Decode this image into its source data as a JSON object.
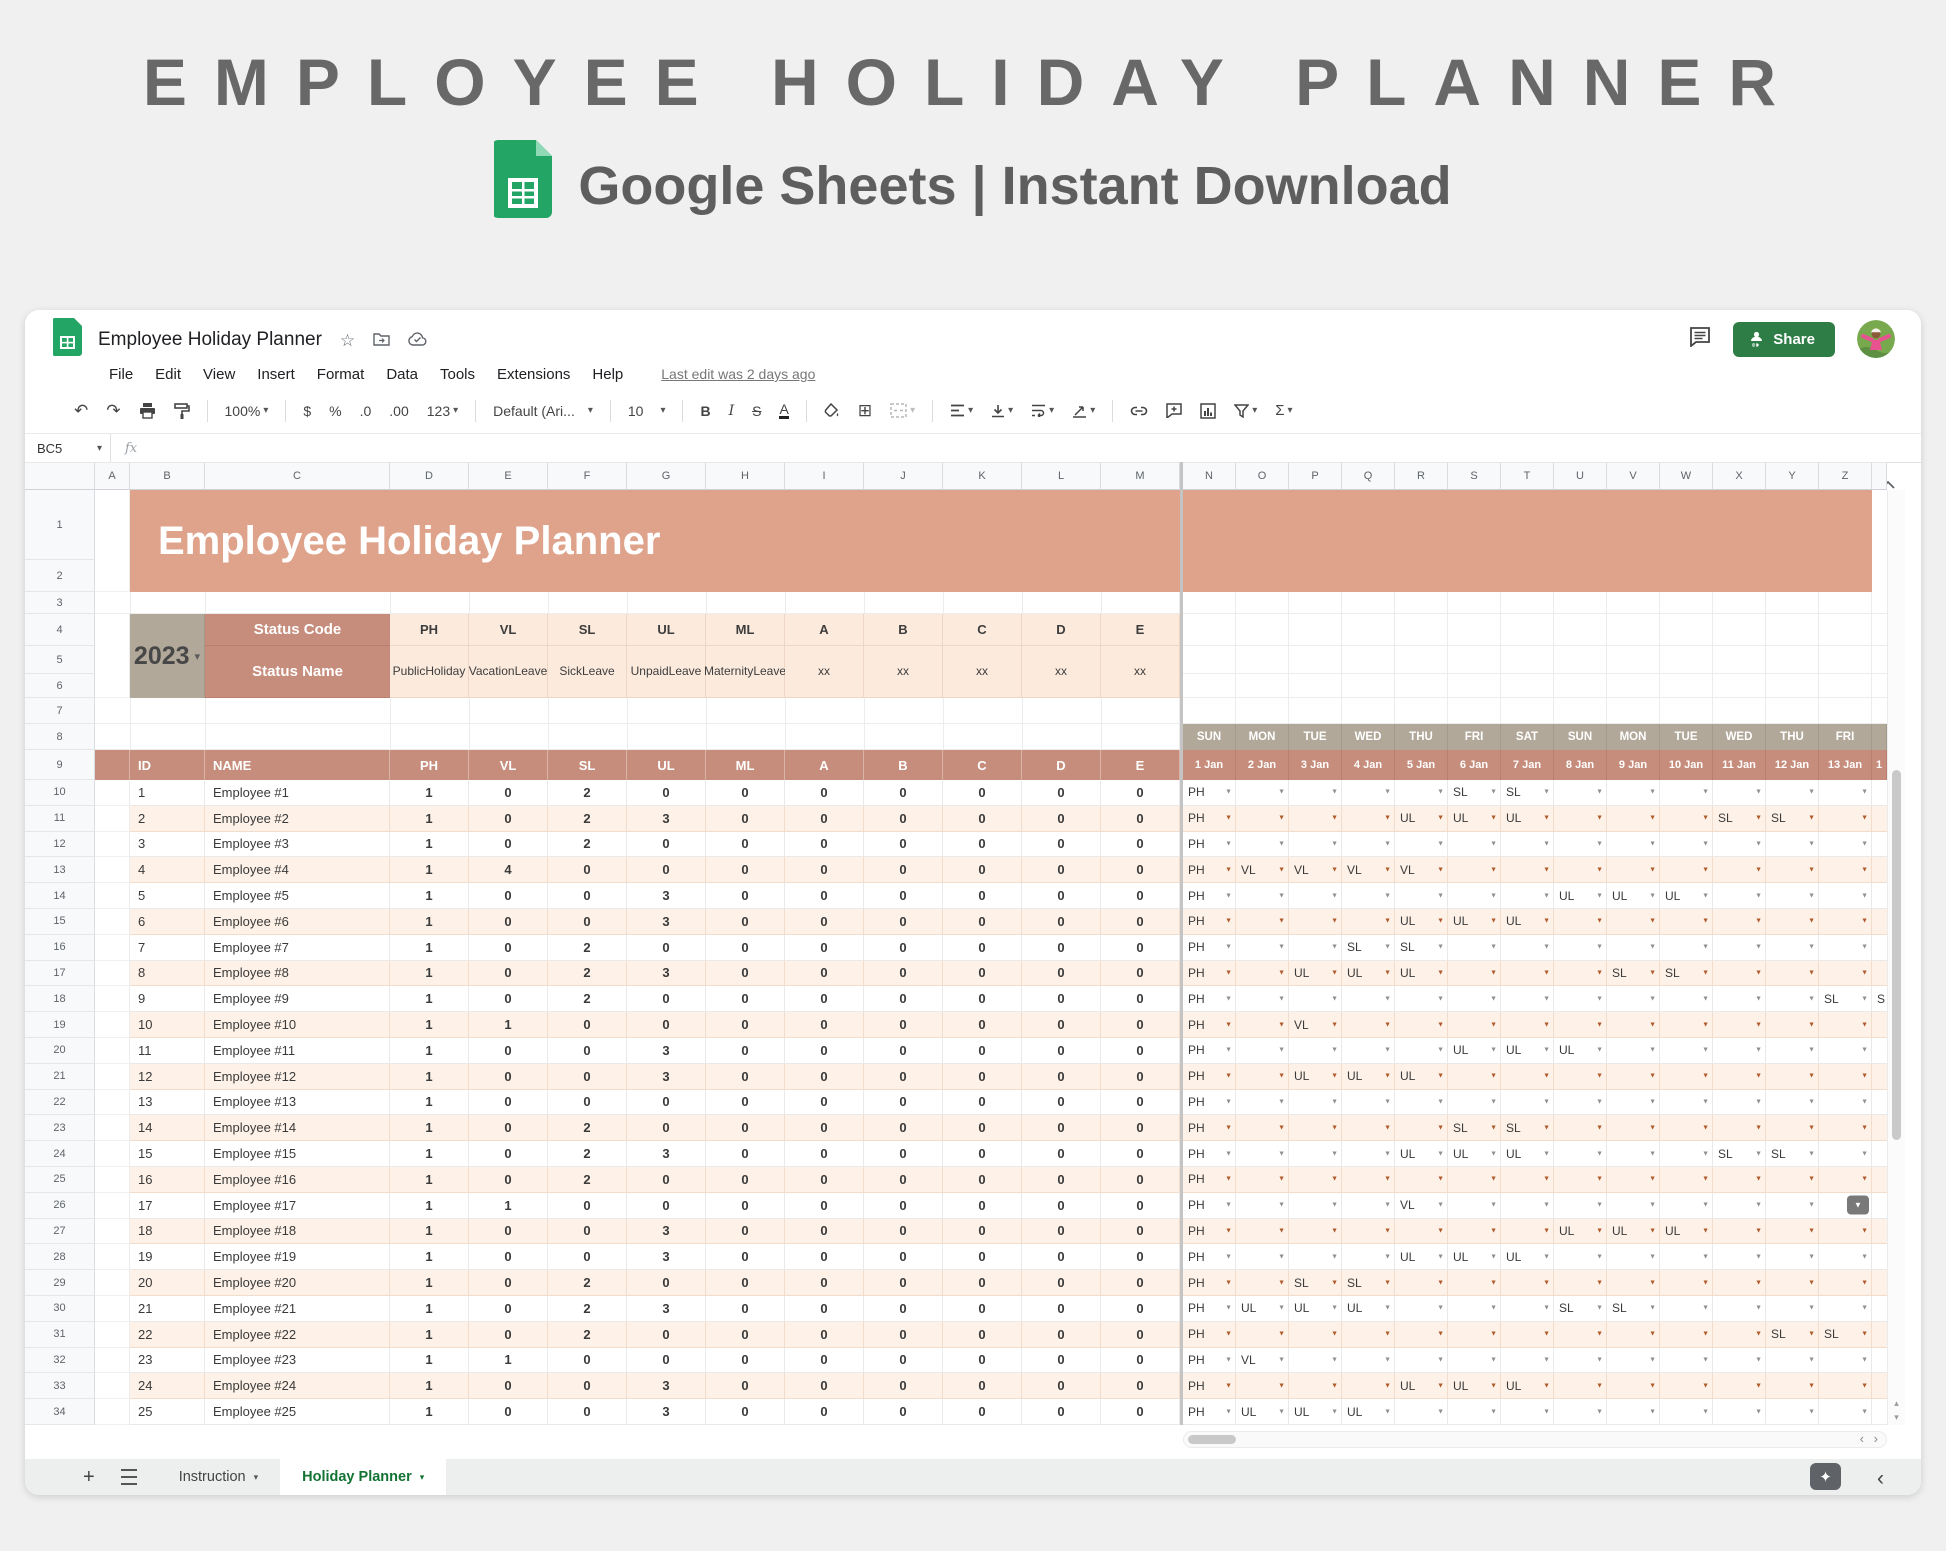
{
  "promo": {
    "title": "EMPLOYEE HOLIDAY PLANNER",
    "subtitle": "Google Sheets | Instant Download",
    "logo": "google-sheets-icon"
  },
  "titlebar": {
    "doc_title": "Employee Holiday Planner",
    "icons": [
      "star-icon",
      "move-folder-icon",
      "cloud-saved-icon"
    ],
    "comment_icon": "comment-icon",
    "share_label": "Share",
    "avatar": "user-avatar"
  },
  "menubar": {
    "items": [
      "File",
      "Edit",
      "View",
      "Insert",
      "Format",
      "Data",
      "Tools",
      "Extensions",
      "Help"
    ],
    "last_edit": "Last edit was 2 days ago"
  },
  "toolbar": {
    "zoom": "100%",
    "currency": "$",
    "percent": "%",
    "decrease_decimal": ".0",
    "increase_decimal": ".00",
    "more_formats": "123",
    "font": "Default (Ari...",
    "font_size": "10",
    "bold": "B",
    "italic": "I",
    "strikethrough": "S",
    "text_color": "A",
    "functions": "Σ"
  },
  "formula_bar": {
    "cell_ref": "BC5",
    "fx": "fx"
  },
  "grid": {
    "left_columns": [
      "A",
      "B",
      "C",
      "D",
      "E",
      "F",
      "G",
      "H",
      "I",
      "J",
      "K",
      "L",
      "M"
    ],
    "right_columns": [
      "N",
      "O",
      "P",
      "Q",
      "R",
      "S",
      "T",
      "U",
      "V",
      "W",
      "X",
      "Y",
      "Z"
    ],
    "row_numbers": [
      1,
      2,
      3,
      4,
      5,
      6,
      7,
      8,
      9,
      10,
      11,
      12,
      13,
      14,
      15,
      16,
      17,
      18,
      19,
      20,
      21,
      22,
      23,
      24,
      25,
      26,
      27,
      28,
      29,
      30,
      31,
      32,
      33,
      34
    ]
  },
  "sheet": {
    "banner_title": "Employee Holiday Planner",
    "year": "2023",
    "status_table": {
      "code_label": "Status Code",
      "name_label": "Status Name",
      "codes": [
        "PH",
        "VL",
        "SL",
        "UL",
        "ML",
        "A",
        "B",
        "C",
        "D",
        "E"
      ],
      "names": [
        "Public Holiday",
        "Vacation Leave",
        "Sick Leave",
        "Unpaid Leave",
        "Maternity Leave",
        "xx",
        "xx",
        "xx",
        "xx",
        "xx"
      ]
    },
    "table_headers": [
      "ID",
      "NAME",
      "PH",
      "VL",
      "SL",
      "UL",
      "ML",
      "A",
      "B",
      "C",
      "D",
      "E"
    ],
    "calendar_days": [
      "SUN",
      "MON",
      "TUE",
      "WED",
      "THU",
      "FRI",
      "SAT",
      "SUN",
      "MON",
      "TUE",
      "WED",
      "THU",
      "FRI"
    ],
    "calendar_dates": [
      "1 Jan",
      "2 Jan",
      "3 Jan",
      "4 Jan",
      "5 Jan",
      "6 Jan",
      "7 Jan",
      "8 Jan",
      "9 Jan",
      "10 Jan",
      "11 Jan",
      "12 Jan",
      "13 Jan"
    ],
    "partial_date": "1",
    "employees": [
      {
        "id": 1,
        "name": "Employee #1",
        "values": [
          1,
          0,
          2,
          0,
          0,
          0,
          0,
          0,
          0,
          0
        ],
        "calendar": [
          "PH",
          "",
          "",
          "",
          "",
          "SL",
          "SL",
          "",
          "",
          "",
          "",
          "",
          ""
        ],
        "partial": ""
      },
      {
        "id": 2,
        "name": "Employee #2",
        "values": [
          1,
          0,
          2,
          3,
          0,
          0,
          0,
          0,
          0,
          0
        ],
        "calendar": [
          "PH",
          "",
          "",
          "",
          "UL",
          "UL",
          "UL",
          "",
          "",
          "",
          "SL",
          "SL",
          ""
        ],
        "partial": ""
      },
      {
        "id": 3,
        "name": "Employee #3",
        "values": [
          1,
          0,
          2,
          0,
          0,
          0,
          0,
          0,
          0,
          0
        ],
        "calendar": [
          "PH",
          "",
          "",
          "",
          "",
          "",
          "",
          "",
          "",
          "",
          "",
          "",
          ""
        ],
        "partial": ""
      },
      {
        "id": 4,
        "name": "Employee #4",
        "values": [
          1,
          4,
          0,
          0,
          0,
          0,
          0,
          0,
          0,
          0
        ],
        "calendar": [
          "PH",
          "VL",
          "VL",
          "VL",
          "VL",
          "",
          "",
          "",
          "",
          "",
          "",
          "",
          ""
        ],
        "partial": ""
      },
      {
        "id": 5,
        "name": "Employee #5",
        "values": [
          1,
          0,
          0,
          3,
          0,
          0,
          0,
          0,
          0,
          0
        ],
        "calendar": [
          "PH",
          "",
          "",
          "",
          "",
          "",
          "",
          "UL",
          "UL",
          "UL",
          "",
          "",
          ""
        ],
        "partial": ""
      },
      {
        "id": 6,
        "name": "Employee #6",
        "values": [
          1,
          0,
          0,
          3,
          0,
          0,
          0,
          0,
          0,
          0
        ],
        "calendar": [
          "PH",
          "",
          "",
          "",
          "UL",
          "UL",
          "UL",
          "",
          "",
          "",
          "",
          "",
          ""
        ],
        "partial": ""
      },
      {
        "id": 7,
        "name": "Employee #7",
        "values": [
          1,
          0,
          2,
          0,
          0,
          0,
          0,
          0,
          0,
          0
        ],
        "calendar": [
          "PH",
          "",
          "",
          "SL",
          "SL",
          "",
          "",
          "",
          "",
          "",
          "",
          "",
          ""
        ],
        "partial": ""
      },
      {
        "id": 8,
        "name": "Employee #8",
        "values": [
          1,
          0,
          2,
          3,
          0,
          0,
          0,
          0,
          0,
          0
        ],
        "calendar": [
          "PH",
          "",
          "UL",
          "UL",
          "UL",
          "",
          "",
          "",
          "SL",
          "SL",
          "",
          "",
          ""
        ],
        "partial": ""
      },
      {
        "id": 9,
        "name": "Employee #9",
        "values": [
          1,
          0,
          2,
          0,
          0,
          0,
          0,
          0,
          0,
          0
        ],
        "calendar": [
          "PH",
          "",
          "",
          "",
          "",
          "",
          "",
          "",
          "",
          "",
          "",
          "",
          "SL"
        ],
        "partial": "S"
      },
      {
        "id": 10,
        "name": "Employee #10",
        "values": [
          1,
          1,
          0,
          0,
          0,
          0,
          0,
          0,
          0,
          0
        ],
        "calendar": [
          "PH",
          "",
          "VL",
          "",
          "",
          "",
          "",
          "",
          "",
          "",
          "",
          "",
          ""
        ],
        "partial": ""
      },
      {
        "id": 11,
        "name": "Employee #11",
        "values": [
          1,
          0,
          0,
          3,
          0,
          0,
          0,
          0,
          0,
          0
        ],
        "calendar": [
          "PH",
          "",
          "",
          "",
          "",
          "UL",
          "UL",
          "UL",
          "",
          "",
          "",
          "",
          ""
        ],
        "partial": ""
      },
      {
        "id": 12,
        "name": "Employee #12",
        "values": [
          1,
          0,
          0,
          3,
          0,
          0,
          0,
          0,
          0,
          0
        ],
        "calendar": [
          "PH",
          "",
          "UL",
          "UL",
          "UL",
          "",
          "",
          "",
          "",
          "",
          "",
          "",
          ""
        ],
        "partial": ""
      },
      {
        "id": 13,
        "name": "Employee #13",
        "values": [
          1,
          0,
          0,
          0,
          0,
          0,
          0,
          0,
          0,
          0
        ],
        "calendar": [
          "PH",
          "",
          "",
          "",
          "",
          "",
          "",
          "",
          "",
          "",
          "",
          "",
          ""
        ],
        "partial": ""
      },
      {
        "id": 14,
        "name": "Employee #14",
        "values": [
          1,
          0,
          2,
          0,
          0,
          0,
          0,
          0,
          0,
          0
        ],
        "calendar": [
          "PH",
          "",
          "",
          "",
          "",
          "SL",
          "SL",
          "",
          "",
          "",
          "",
          "",
          ""
        ],
        "partial": ""
      },
      {
        "id": 15,
        "name": "Employee #15",
        "values": [
          1,
          0,
          2,
          3,
          0,
          0,
          0,
          0,
          0,
          0
        ],
        "calendar": [
          "PH",
          "",
          "",
          "",
          "UL",
          "UL",
          "UL",
          "",
          "",
          "",
          "SL",
          "SL",
          ""
        ],
        "partial": ""
      },
      {
        "id": 16,
        "name": "Employee #16",
        "values": [
          1,
          0,
          2,
          0,
          0,
          0,
          0,
          0,
          0,
          0
        ],
        "calendar": [
          "PH",
          "",
          "",
          "",
          "",
          "",
          "",
          "",
          "",
          "",
          "",
          "",
          ""
        ],
        "partial": ""
      },
      {
        "id": 17,
        "name": "Employee #17",
        "values": [
          1,
          1,
          0,
          0,
          0,
          0,
          0,
          0,
          0,
          0
        ],
        "calendar": [
          "PH",
          "",
          "",
          "",
          "VL",
          "",
          "",
          "",
          "",
          "",
          "",
          "",
          ""
        ],
        "partial": ""
      },
      {
        "id": 18,
        "name": "Employee #18",
        "values": [
          1,
          0,
          0,
          3,
          0,
          0,
          0,
          0,
          0,
          0
        ],
        "calendar": [
          "PH",
          "",
          "",
          "",
          "",
          "",
          "",
          "UL",
          "UL",
          "UL",
          "",
          "",
          ""
        ],
        "partial": ""
      },
      {
        "id": 19,
        "name": "Employee #19",
        "values": [
          1,
          0,
          0,
          3,
          0,
          0,
          0,
          0,
          0,
          0
        ],
        "calendar": [
          "PH",
          "",
          "",
          "",
          "UL",
          "UL",
          "UL",
          "",
          "",
          "",
          "",
          "",
          ""
        ],
        "partial": ""
      },
      {
        "id": 20,
        "name": "Employee #20",
        "values": [
          1,
          0,
          2,
          0,
          0,
          0,
          0,
          0,
          0,
          0
        ],
        "calendar": [
          "PH",
          "",
          "SL",
          "SL",
          "",
          "",
          "",
          "",
          "",
          "",
          "",
          "",
          ""
        ],
        "partial": ""
      },
      {
        "id": 21,
        "name": "Employee #21",
        "values": [
          1,
          0,
          2,
          3,
          0,
          0,
          0,
          0,
          0,
          0
        ],
        "calendar": [
          "PH",
          "UL",
          "UL",
          "UL",
          "",
          "",
          "",
          "SL",
          "SL",
          "",
          "",
          "",
          ""
        ],
        "partial": ""
      },
      {
        "id": 22,
        "name": "Employee #22",
        "values": [
          1,
          0,
          2,
          0,
          0,
          0,
          0,
          0,
          0,
          0
        ],
        "calendar": [
          "PH",
          "",
          "",
          "",
          "",
          "",
          "",
          "",
          "",
          "",
          "",
          "SL",
          "SL"
        ],
        "partial": ""
      },
      {
        "id": 23,
        "name": "Employee #23",
        "values": [
          1,
          1,
          0,
          0,
          0,
          0,
          0,
          0,
          0,
          0
        ],
        "calendar": [
          "PH",
          "VL",
          "",
          "",
          "",
          "",
          "",
          "",
          "",
          "",
          "",
          "",
          ""
        ],
        "partial": ""
      },
      {
        "id": 24,
        "name": "Employee #24",
        "values": [
          1,
          0,
          0,
          3,
          0,
          0,
          0,
          0,
          0,
          0
        ],
        "calendar": [
          "PH",
          "",
          "",
          "",
          "UL",
          "UL",
          "UL",
          "",
          "",
          "",
          "",
          "",
          ""
        ],
        "partial": ""
      },
      {
        "id": 25,
        "name": "Employee #25",
        "values": [
          1,
          0,
          0,
          3,
          0,
          0,
          0,
          0,
          0,
          0
        ],
        "calendar": [
          "PH",
          "UL",
          "UL",
          "UL",
          "",
          "",
          "",
          "",
          "",
          "",
          "",
          "",
          ""
        ],
        "partial": ""
      }
    ],
    "active_dropdown": {
      "employee_index": 16,
      "day_index": 12
    }
  },
  "tabs": {
    "add_label": "+",
    "all_sheets_icon": "all-sheets-icon",
    "items": [
      "Instruction",
      "Holiday Planner"
    ],
    "active": "Holiday Planner"
  },
  "colors": {
    "banner": "#dfa28b",
    "header_rose": "#c78d7c",
    "day_tan": "#b2a89a",
    "cell_peach": "#fceadd",
    "row_alt": "#fdf1e8",
    "arrow_rust": "#b05a2a",
    "sheets_green": "#23a566",
    "tab_active_green": "#137333",
    "share_green": "#2e7d46"
  }
}
